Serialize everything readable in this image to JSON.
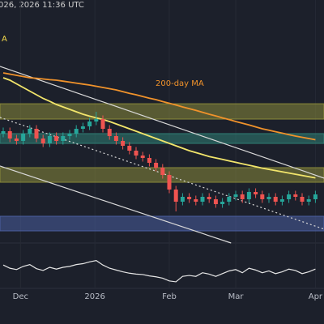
{
  "chart_data": {
    "type": "candlestick",
    "timestamp": "026, 2026 11:36 UTC",
    "annotations": [
      {
        "text": "A",
        "color": "#f2d84b"
      },
      {
        "text": "200-day MA",
        "color": "#f0922b"
      }
    ],
    "ylim": [
      0,
      100
    ],
    "xticks": [
      {
        "value": 2.6,
        "label": "Dec"
      },
      {
        "value": 13.8,
        "label": "2026"
      },
      {
        "value": 25,
        "label": "Feb"
      },
      {
        "value": 35,
        "label": "Mar"
      },
      {
        "value": 47,
        "label": "Apr"
      }
    ],
    "up_color": "#26a69a",
    "down_color": "#ef5350",
    "open": [
      45,
      46,
      43,
      42,
      45,
      47,
      43,
      41,
      44,
      42,
      44,
      45,
      47,
      48,
      50,
      51,
      47,
      44,
      42,
      40,
      38,
      36,
      35,
      33,
      31,
      28,
      22,
      17,
      19,
      18,
      17,
      19,
      18,
      16,
      17,
      19,
      20,
      18,
      21,
      20,
      18,
      19,
      17,
      18,
      20,
      19,
      17,
      18
    ],
    "high": [
      47.5,
      47.5,
      44.5,
      46.5,
      48.5,
      48.5,
      44.5,
      45.5,
      45.5,
      45.5,
      46.5,
      48.5,
      49.5,
      51.5,
      54,
      52.5,
      48.5,
      45.5,
      43.5,
      41.5,
      39.5,
      37.5,
      36.5,
      34.5,
      32.5,
      29.5,
      23.5,
      20.5,
      20.5,
      19.5,
      20.5,
      20.5,
      19.5,
      18.5,
      20.5,
      21.5,
      21.5,
      22.5,
      22.5,
      21.5,
      20.5,
      20.5,
      19.5,
      21.5,
      21.5,
      20.5,
      19.5,
      21.5
    ],
    "low": [
      43.5,
      41.5,
      40.5,
      40.5,
      43.5,
      41.5,
      39.5,
      39.5,
      40.5,
      40.5,
      42.5,
      43.5,
      45.5,
      46.5,
      48.5,
      45.5,
      42.5,
      40.5,
      38.5,
      36.5,
      34.5,
      33.5,
      31.5,
      29.5,
      26.5,
      20.5,
      13,
      15.5,
      16.5,
      15.5,
      15.5,
      16.5,
      14.5,
      14.5,
      15.5,
      17.5,
      16.5,
      16.5,
      18.5,
      16.5,
      16.5,
      15.5,
      15.5,
      16.5,
      17.5,
      15.5,
      15.5,
      16.5
    ],
    "close": [
      46,
      43,
      42,
      45,
      47,
      43,
      41,
      44,
      42,
      44,
      45,
      47,
      48,
      50,
      51,
      47,
      44,
      42,
      40,
      38,
      36,
      35,
      33,
      31,
      28,
      22,
      17,
      19,
      18,
      17,
      19,
      18,
      16,
      17,
      19,
      20,
      18,
      21,
      20,
      18,
      19,
      17,
      18,
      20,
      19,
      17,
      18,
      20
    ],
    "series": [
      {
        "color": "#f0922b",
        "values": [
          70,
          69.5,
          69,
          68.5,
          68,
          67.8,
          67.5,
          67.2,
          67,
          66.6,
          66.2,
          65.8,
          65.4,
          65,
          64.5,
          64,
          63.5,
          63,
          62.3,
          61.6,
          61,
          60.3,
          59.6,
          59,
          58.2,
          57.5,
          56.8,
          56,
          55.3,
          54.6,
          53.8,
          53,
          52.3,
          51.5,
          50.8,
          50,
          49.3,
          48.6,
          47.8,
          47,
          46.4,
          45.8,
          45.2,
          44.6,
          44,
          43.5,
          43,
          42.5
        ]
      },
      {
        "color": "#f2e56b",
        "values": [
          68,
          67,
          65.5,
          64,
          62.5,
          61,
          59.5,
          58.3,
          57,
          56,
          55,
          54,
          53,
          52.2,
          51.5,
          50.8,
          50,
          49,
          48,
          47,
          46,
          45,
          44,
          43,
          42,
          41,
          40,
          39,
          38,
          37.2,
          36.4,
          35.6,
          35,
          34.4,
          33.8,
          33.2,
          32.6,
          32,
          31.4,
          30.8,
          30.3,
          29.8,
          29.3,
          28.8,
          28.3,
          27.8,
          27.3,
          26.8
        ]
      }
    ],
    "trendlines": [
      {
        "x": [
          -0.5,
          48.3
        ],
        "y": [
          72.7,
          26.7
        ],
        "color": "#d9d9d9",
        "dashed": false
      },
      {
        "x": [
          -0.5,
          34.3
        ],
        "y": [
          31.7,
          0
        ],
        "color": "#d9d9d9",
        "dashed": false
      },
      {
        "x": [
          -0.5,
          48.3
        ],
        "y": [
          51.7,
          5.7
        ],
        "color": "#d9d9d9",
        "dashed": true
      }
    ],
    "zones": [
      {
        "from": 51,
        "to": 57.3,
        "color": "#8a8a3a"
      },
      {
        "from": 41,
        "to": 45,
        "color": "#2f7f74"
      },
      {
        "from": 25,
        "to": 31,
        "color": "#8a8a3a"
      },
      {
        "from": 5,
        "to": 11,
        "color": "#4a5fa0"
      }
    ],
    "rsi": {
      "ylim": [
        0,
        100
      ],
      "color": "#e6e6e6",
      "values": [
        55,
        48,
        45,
        52,
        56,
        47,
        43,
        50,
        46,
        50,
        52,
        56,
        58,
        62,
        65,
        55,
        48,
        44,
        40,
        37,
        35,
        34,
        31,
        29,
        26,
        20,
        18,
        30,
        32,
        30,
        38,
        35,
        30,
        36,
        42,
        45,
        38,
        48,
        44,
        38,
        42,
        36,
        40,
        46,
        43,
        36,
        40,
        46
      ]
    }
  }
}
